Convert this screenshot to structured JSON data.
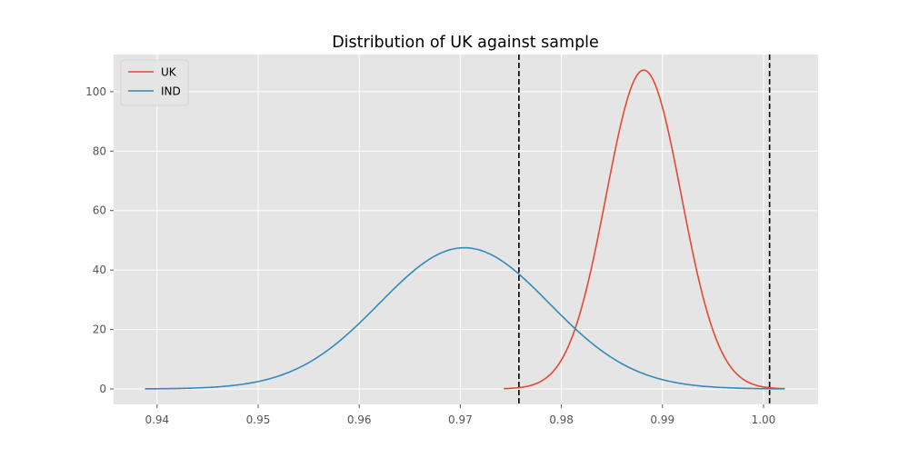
{
  "chart_data": {
    "type": "line",
    "title": "Distribution of UK against sample",
    "xlabel": "",
    "ylabel": "",
    "xlim": [
      0.9357,
      1.0054
    ],
    "ylim": [
      -5.2,
      112.5
    ],
    "xticks": [
      0.94,
      0.95,
      0.96,
      0.97,
      0.98,
      0.99,
      1.0
    ],
    "xtick_labels": [
      "0.94",
      "0.95",
      "0.96",
      "0.97",
      "0.98",
      "0.99",
      "1.00"
    ],
    "yticks": [
      0,
      20,
      40,
      60,
      80,
      100
    ],
    "ytick_labels": [
      "0",
      "20",
      "40",
      "60",
      "80",
      "100"
    ],
    "grid": true,
    "legend": "top-left",
    "vlines": [
      0.9758,
      1.0006
    ],
    "series": [
      {
        "name": "UK",
        "color": "#E24A33",
        "dist": {
          "mean": 0.98815,
          "sd": 0.00372
        },
        "x_range": [
          0.9743,
          1.0021
        ]
      },
      {
        "name": "IND",
        "color": "#348ABD",
        "dist": {
          "mean": 0.9704,
          "sd": 0.0084
        },
        "x_range": [
          0.9388,
          1.0021
        ]
      }
    ]
  }
}
